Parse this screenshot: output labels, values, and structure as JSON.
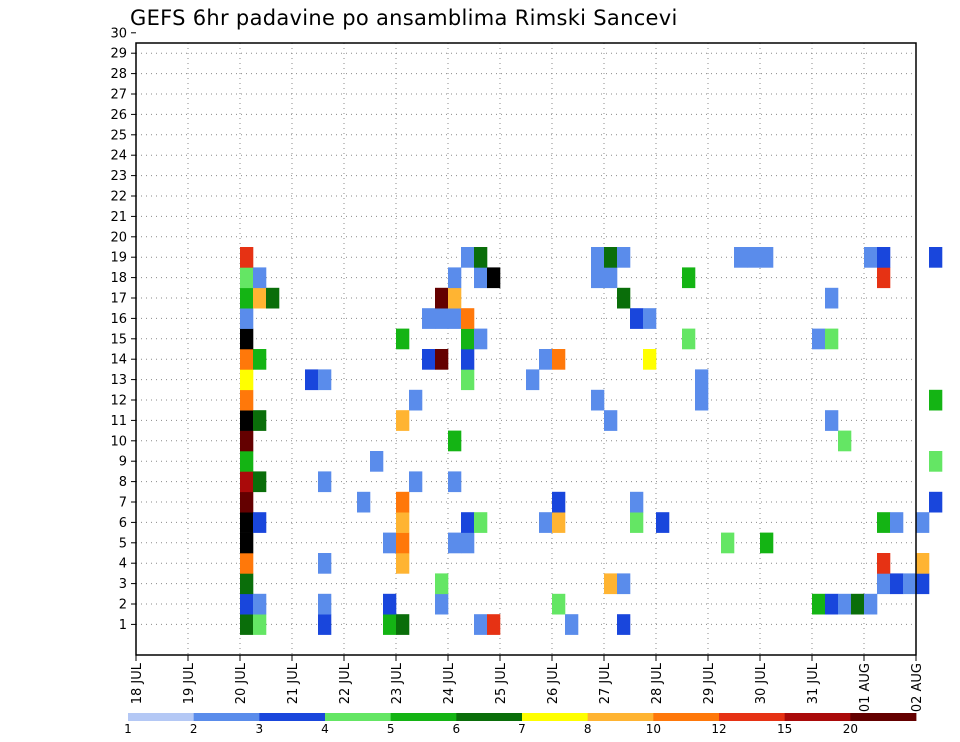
{
  "chart_data": {
    "type": "heatmap",
    "title": "GEFS 6hr padavine po ansamblima Rimski Sancevi",
    "x_ticks": [
      "18 JUL",
      "19 JUL",
      "20 JUL",
      "21 JUL",
      "22 JUL",
      "23 JUL",
      "24 JUL",
      "25 JUL",
      "26 JUL",
      "27 JUL",
      "28 JUL",
      "29 JUL",
      "30 JUL",
      "31 JUL",
      "01 AUG",
      "02 AUG"
    ],
    "y_ticks": [
      1,
      2,
      3,
      4,
      5,
      6,
      7,
      8,
      9,
      10,
      11,
      12,
      13,
      14,
      15,
      16,
      17,
      18,
      19,
      20,
      21,
      22,
      23,
      24,
      25,
      26,
      27,
      28,
      29,
      30
    ],
    "time_step_hours": 6,
    "grid": true,
    "colorbar": {
      "levels": [
        1,
        2,
        3,
        4,
        5,
        6,
        7,
        8,
        10,
        12,
        15,
        20
      ],
      "level_labels": [
        "1",
        "2",
        "3",
        "4",
        "5",
        "6",
        "7",
        "8",
        "10",
        "12",
        "15",
        "20"
      ],
      "colors": [
        "#b4c8f5",
        "#5a8ceb",
        "#1946dc",
        "#64e664",
        "#14b414",
        "#0a6e0a",
        "#ffff00",
        "#ffb432",
        "#ff780a",
        "#e63214",
        "#aa0a0a",
        "#640000"
      ]
    },
    "cells": [
      [
        "20 JUL 00",
        1,
        5
      ],
      [
        "20 JUL 06",
        1,
        3
      ],
      [
        "21 JUL 12",
        1,
        2
      ],
      [
        "22 JUL 18",
        1,
        4
      ],
      [
        "23 JUL 00",
        1,
        5
      ],
      [
        "24 JUL 12",
        1,
        1
      ],
      [
        "24 JUL 18",
        1,
        9
      ],
      [
        "26 JUL 06",
        1,
        1
      ],
      [
        "27 JUL 06",
        1,
        2
      ],
      [
        "20 JUL 00",
        2,
        2
      ],
      [
        "20 JUL 06",
        2,
        1
      ],
      [
        "21 JUL 12",
        2,
        1
      ],
      [
        "22 JUL 18",
        2,
        2
      ],
      [
        "23 JUL 18",
        2,
        1
      ],
      [
        "26 JUL 00",
        2,
        3
      ],
      [
        "31 JUL 00",
        2,
        4
      ],
      [
        "31 JUL 06",
        2,
        2
      ],
      [
        "31 JUL 12",
        2,
        1
      ],
      [
        "31 JUL 18",
        2,
        5
      ],
      [
        "01 AUG 00",
        2,
        1
      ],
      [
        "20 JUL 00",
        3,
        5
      ],
      [
        "23 JUL 18",
        3,
        3
      ],
      [
        "27 JUL 00",
        3,
        7
      ],
      [
        "27 JUL 06",
        3,
        1
      ],
      [
        "01 AUG 06",
        3,
        1
      ],
      [
        "01 AUG 12",
        3,
        2
      ],
      [
        "01 AUG 18",
        3,
        1
      ],
      [
        "02 AUG 00",
        3,
        2
      ],
      [
        "20 JUL 00",
        4,
        8
      ],
      [
        "21 JUL 12",
        4,
        1
      ],
      [
        "23 JUL 00",
        4,
        7
      ],
      [
        "01 AUG 06",
        4,
        9
      ],
      [
        "02 AUG 00",
        4,
        7
      ],
      [
        "20 JUL 00",
        5,
        12
      ],
      [
        "22 JUL 18",
        5,
        1
      ],
      [
        "23 JUL 00",
        5,
        8
      ],
      [
        "24 JUL 00",
        5,
        1
      ],
      [
        "24 JUL 06",
        5,
        1
      ],
      [
        "29 JUL 06",
        5,
        3
      ],
      [
        "30 JUL 00",
        5,
        4
      ],
      [
        "20 JUL 00",
        6,
        12
      ],
      [
        "20 JUL 06",
        6,
        2
      ],
      [
        "23 JUL 00",
        6,
        7
      ],
      [
        "24 JUL 06",
        6,
        2
      ],
      [
        "24 JUL 12",
        6,
        3
      ],
      [
        "25 JUL 18",
        6,
        1
      ],
      [
        "26 JUL 00",
        6,
        7
      ],
      [
        "27 JUL 12",
        6,
        3
      ],
      [
        "28 JUL 00",
        6,
        2
      ],
      [
        "01 AUG 06",
        6,
        4
      ],
      [
        "01 AUG 12",
        6,
        1
      ],
      [
        "02 AUG 00",
        6,
        1
      ],
      [
        "20 JUL 00",
        7,
        11
      ],
      [
        "22 JUL 06",
        7,
        1
      ],
      [
        "23 JUL 00",
        7,
        8
      ],
      [
        "26 JUL 00",
        7,
        2
      ],
      [
        "27 JUL 12",
        7,
        1
      ],
      [
        "02 AUG 06",
        7,
        2
      ],
      [
        "20 JUL 00",
        8,
        10
      ],
      [
        "20 JUL 06",
        8,
        5
      ],
      [
        "21 JUL 12",
        8,
        1
      ],
      [
        "23 JUL 06",
        8,
        1
      ],
      [
        "24 JUL 00",
        8,
        1
      ],
      [
        "20 JUL 00",
        9,
        4
      ],
      [
        "22 JUL 12",
        9,
        1
      ],
      [
        "02 AUG 06",
        9,
        3
      ],
      [
        "20 JUL 00",
        10,
        11
      ],
      [
        "24 JUL 00",
        10,
        4
      ],
      [
        "31 JUL 12",
        10,
        3
      ],
      [
        "20 JUL 00",
        11,
        12
      ],
      [
        "20 JUL 06",
        11,
        5
      ],
      [
        "23 JUL 00",
        11,
        7
      ],
      [
        "27 JUL 00",
        11,
        1
      ],
      [
        "31 JUL 06",
        11,
        1
      ],
      [
        "20 JUL 00",
        12,
        8
      ],
      [
        "23 JUL 06",
        12,
        1
      ],
      [
        "26 JUL 18",
        12,
        1
      ],
      [
        "28 JUL 18",
        12,
        1
      ],
      [
        "02 AUG 06",
        12,
        4
      ],
      [
        "20 JUL 00",
        13,
        6
      ],
      [
        "21 JUL 06",
        13,
        2
      ],
      [
        "21 JUL 12",
        13,
        1
      ],
      [
        "24 JUL 06",
        13,
        3
      ],
      [
        "25 JUL 12",
        13,
        1
      ],
      [
        "28 JUL 18",
        13,
        1
      ],
      [
        "20 JUL 00",
        14,
        8
      ],
      [
        "20 JUL 06",
        14,
        4
      ],
      [
        "23 JUL 12",
        14,
        2
      ],
      [
        "23 JUL 18",
        14,
        11
      ],
      [
        "24 JUL 06",
        14,
        2
      ],
      [
        "25 JUL 18",
        14,
        1
      ],
      [
        "26 JUL 00",
        14,
        8
      ],
      [
        "27 JUL 18",
        14,
        6
      ],
      [
        "20 JUL 00",
        15,
        12
      ],
      [
        "23 JUL 00",
        15,
        4
      ],
      [
        "24 JUL 06",
        15,
        4
      ],
      [
        "24 JUL 12",
        15,
        1
      ],
      [
        "28 JUL 12",
        15,
        3
      ],
      [
        "31 JUL 00",
        15,
        1
      ],
      [
        "31 JUL 06",
        15,
        3
      ],
      [
        "20 JUL 00",
        16,
        1
      ],
      [
        "23 JUL 12",
        16,
        1
      ],
      [
        "23 JUL 18",
        16,
        1
      ],
      [
        "24 JUL 00",
        16,
        1
      ],
      [
        "24 JUL 06",
        16,
        8
      ],
      [
        "27 JUL 12",
        16,
        2
      ],
      [
        "27 JUL 18",
        16,
        1
      ],
      [
        "20 JUL 00",
        17,
        4
      ],
      [
        "20 JUL 06",
        17,
        7
      ],
      [
        "20 JUL 12",
        17,
        5
      ],
      [
        "23 JUL 18",
        17,
        11
      ],
      [
        "24 JUL 00",
        17,
        7
      ],
      [
        "27 JUL 06",
        17,
        5
      ],
      [
        "31 JUL 06",
        17,
        1
      ],
      [
        "20 JUL 00",
        18,
        3
      ],
      [
        "20 JUL 06",
        18,
        1
      ],
      [
        "24 JUL 00",
        18,
        1
      ],
      [
        "24 JUL 12",
        18,
        1
      ],
      [
        "24 JUL 18",
        18,
        12
      ],
      [
        "26 JUL 18",
        18,
        1
      ],
      [
        "27 JUL 00",
        18,
        1
      ],
      [
        "28 JUL 12",
        18,
        4
      ],
      [
        "01 AUG 06",
        18,
        9
      ],
      [
        "20 JUL 00",
        19,
        9
      ],
      [
        "24 JUL 06",
        19,
        1
      ],
      [
        "24 JUL 12",
        19,
        5
      ],
      [
        "26 JUL 18",
        19,
        1
      ],
      [
        "27 JUL 00",
        19,
        5
      ],
      [
        "27 JUL 06",
        19,
        1
      ],
      [
        "29 JUL 12",
        19,
        1
      ],
      [
        "29 JUL 18",
        19,
        1
      ],
      [
        "30 JUL 00",
        19,
        1
      ],
      [
        "01 AUG 00",
        19,
        1
      ],
      [
        "01 AUG 06",
        19,
        2
      ],
      [
        "02 AUG 06",
        19,
        2
      ]
    ]
  }
}
